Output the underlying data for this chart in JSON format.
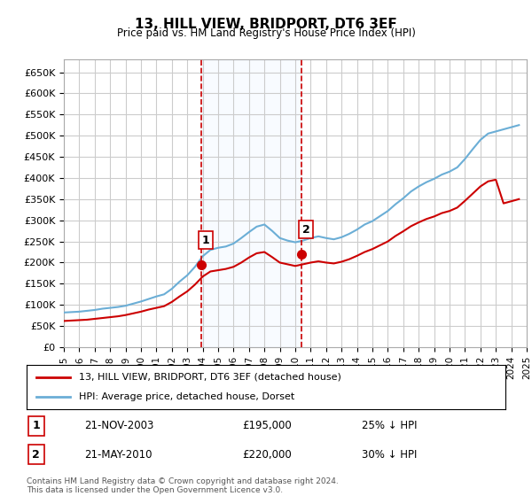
{
  "title": "13, HILL VIEW, BRIDPORT, DT6 3EF",
  "subtitle": "Price paid vs. HM Land Registry's House Price Index (HPI)",
  "background_color": "#ffffff",
  "plot_bg_color": "#ffffff",
  "grid_color": "#cccccc",
  "ylim": [
    0,
    680000
  ],
  "yticks": [
    0,
    50000,
    100000,
    150000,
    200000,
    250000,
    300000,
    350000,
    400000,
    450000,
    500000,
    550000,
    600000,
    650000
  ],
  "ytick_labels": [
    "£0",
    "£50K",
    "£100K",
    "£150K",
    "£200K",
    "£250K",
    "£300K",
    "£350K",
    "£400K",
    "£450K",
    "£500K",
    "£550K",
    "£600K",
    "£650K"
  ],
  "hpi_color": "#6baed6",
  "price_color": "#cc0000",
  "marker1_color": "#cc0000",
  "marker2_color": "#cc0000",
  "vline_color": "#cc0000",
  "shade_color": "#ddeeff",
  "legend_label_price": "13, HILL VIEW, BRIDPORT, DT6 3EF (detached house)",
  "legend_label_hpi": "HPI: Average price, detached house, Dorset",
  "transaction1_date": "21-NOV-2003",
  "transaction1_price": 195000,
  "transaction1_pct": "25% ↓ HPI",
  "transaction2_date": "21-MAY-2010",
  "transaction2_price": 220000,
  "transaction2_pct": "30% ↓ HPI",
  "footnote": "Contains HM Land Registry data © Crown copyright and database right 2024.\nThis data is licensed under the Open Government Licence v3.0.",
  "hpi_years": [
    1995,
    1995.5,
    1996,
    1996.5,
    1997,
    1997.5,
    1998,
    1998.5,
    1999,
    1999.5,
    2000,
    2000.5,
    2001,
    2001.5,
    2002,
    2002.5,
    2003,
    2003.5,
    2004,
    2004.5,
    2005,
    2005.5,
    2006,
    2006.5,
    2007,
    2007.5,
    2008,
    2008.5,
    2009,
    2009.5,
    2010,
    2010.5,
    2011,
    2011.5,
    2012,
    2012.5,
    2013,
    2013.5,
    2014,
    2014.5,
    2015,
    2015.5,
    2016,
    2016.5,
    2017,
    2017.5,
    2018,
    2018.5,
    2019,
    2019.5,
    2020,
    2020.5,
    2021,
    2021.5,
    2022,
    2022.5,
    2023,
    2023.5,
    2024,
    2024.5
  ],
  "hpi_values": [
    82000,
    83000,
    84000,
    86000,
    88000,
    91000,
    93000,
    95000,
    98000,
    103000,
    108000,
    114000,
    120000,
    125000,
    138000,
    155000,
    170000,
    190000,
    215000,
    230000,
    235000,
    238000,
    245000,
    258000,
    272000,
    285000,
    290000,
    275000,
    258000,
    252000,
    248000,
    252000,
    258000,
    262000,
    258000,
    255000,
    260000,
    268000,
    278000,
    290000,
    298000,
    310000,
    322000,
    338000,
    352000,
    368000,
    380000,
    390000,
    398000,
    408000,
    415000,
    425000,
    445000,
    468000,
    490000,
    505000,
    510000,
    515000,
    520000,
    525000
  ],
  "price_years": [
    1995,
    1995.5,
    1996,
    1996.5,
    1997,
    1997.5,
    1998,
    1998.5,
    1999,
    1999.5,
    2000,
    2000.5,
    2001,
    2001.5,
    2002,
    2002.5,
    2003,
    2003.5,
    2004,
    2004.5,
    2005,
    2005.5,
    2006,
    2006.5,
    2007,
    2007.5,
    2008,
    2008.5,
    2009,
    2009.5,
    2010,
    2010.5,
    2011,
    2011.5,
    2012,
    2012.5,
    2013,
    2013.5,
    2014,
    2014.5,
    2015,
    2015.5,
    2016,
    2016.5,
    2017,
    2017.5,
    2018,
    2018.5,
    2019,
    2019.5,
    2020,
    2020.5,
    2021,
    2021.5,
    2022,
    2022.5,
    2023,
    2023.5,
    2024,
    2024.5
  ],
  "price_values": [
    62000,
    63000,
    64000,
    65000,
    67000,
    69000,
    71000,
    73000,
    76000,
    80000,
    84000,
    89000,
    93000,
    97000,
    107000,
    120000,
    132000,
    148000,
    167000,
    179000,
    182000,
    185000,
    190000,
    200000,
    212000,
    222000,
    225000,
    213000,
    200000,
    196000,
    192000,
    196000,
    200000,
    203000,
    200000,
    198000,
    202000,
    208000,
    216000,
    225000,
    232000,
    241000,
    250000,
    263000,
    274000,
    286000,
    295000,
    303000,
    309000,
    317000,
    322000,
    330000,
    346000,
    363000,
    380000,
    392000,
    396000,
    340000,
    345000,
    350000
  ],
  "marker1_x": 2003.9,
  "marker1_y": 195000,
  "marker2_x": 2010.4,
  "marker2_y": 220000,
  "vline1_x": 2003.9,
  "vline2_x": 2010.4,
  "xmin": 1995,
  "xmax": 2025
}
